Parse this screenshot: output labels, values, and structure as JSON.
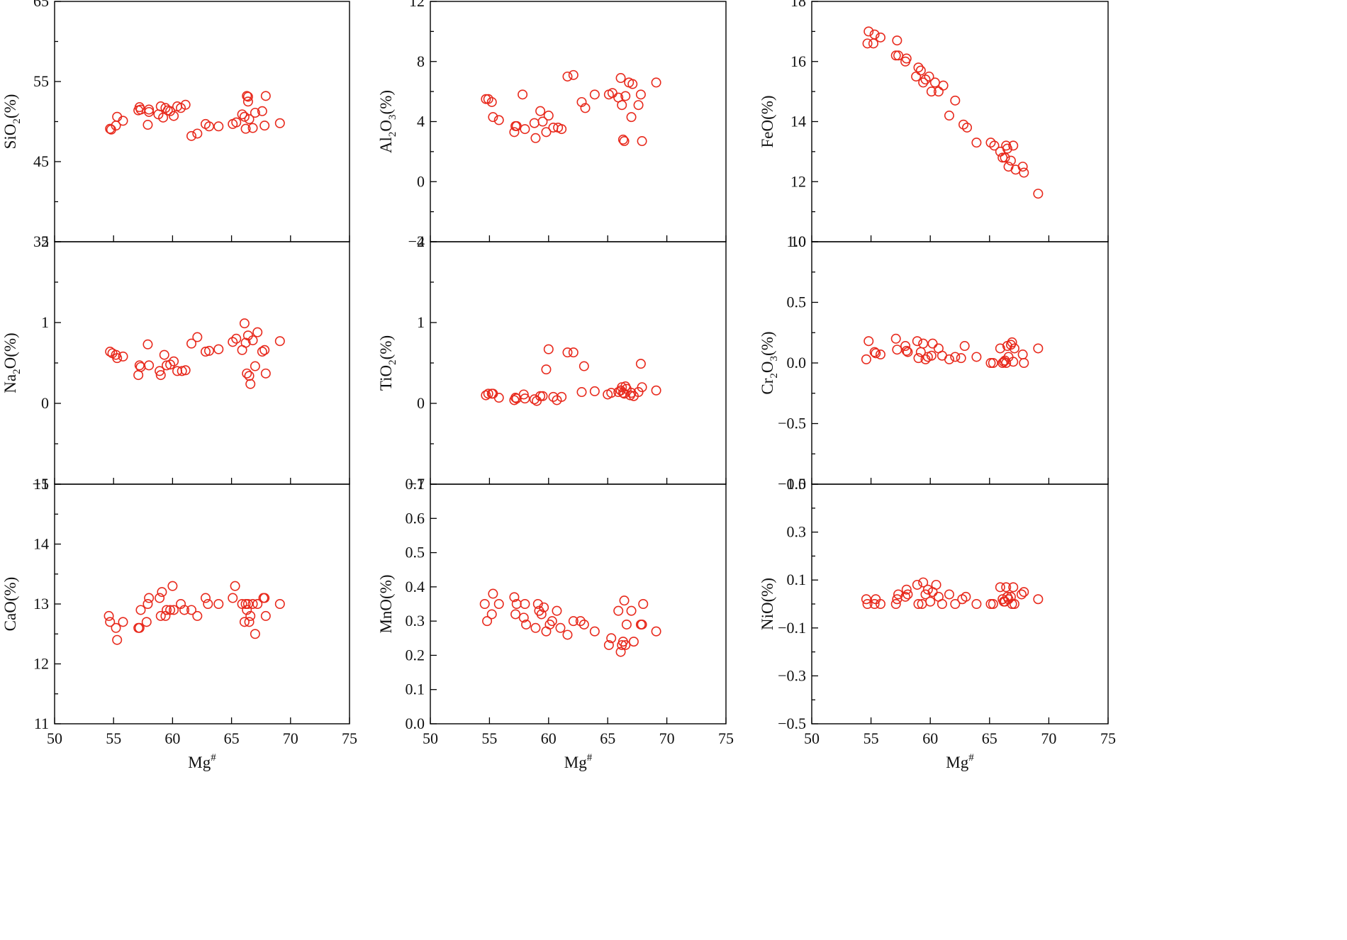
{
  "chart_data": [
    {
      "type": "scatter",
      "id": "sio2",
      "ylabel": "SiO2(%)",
      "ylabel_main": "SiO",
      "ylabel_sub": "2",
      "ylabel_tail": "(%)",
      "xlabel": "",
      "xlim": [
        50,
        75
      ],
      "ylim": [
        35,
        65
      ],
      "yticks": [
        35,
        45,
        55,
        65
      ],
      "ytick_labels": [
        "35",
        "45",
        "55",
        "65"
      ],
      "minor_yticks": [
        40,
        50,
        60
      ],
      "xticks": [
        50,
        55,
        60,
        65,
        70,
        75
      ],
      "xtick_labels": [],
      "x": [
        54.7,
        54.8,
        55.2,
        55.3,
        55.8,
        57.1,
        57.2,
        57.3,
        57.9,
        58.0,
        58.0,
        58.8,
        59.0,
        59.2,
        59.4,
        59.6,
        59.8,
        60.1,
        60.4,
        60.7,
        61.1,
        61.6,
        62.1,
        62.8,
        63.1,
        63.9,
        65.1,
        65.4,
        65.9,
        66.1,
        66.2,
        66.3,
        66.4,
        66.4,
        66.5,
        66.8,
        67.0,
        67.6,
        67.8,
        67.9,
        69.1
      ],
      "y": [
        49.1,
        49.0,
        49.5,
        50.6,
        50.1,
        51.4,
        51.8,
        51.5,
        49.6,
        51.2,
        51.5,
        50.9,
        51.9,
        50.5,
        51.7,
        51.4,
        51.3,
        50.7,
        51.9,
        51.7,
        52.1,
        48.2,
        48.5,
        49.7,
        49.4,
        49.4,
        49.7,
        49.9,
        50.9,
        50.6,
        49.1,
        53.2,
        53.1,
        52.5,
        50.3,
        49.2,
        51.1,
        51.3,
        49.5,
        53.2,
        49.8
      ],
      "color": "#e8291c",
      "marker": "open-circle",
      "grid": false,
      "legend": false
    },
    {
      "type": "scatter",
      "id": "al2o3",
      "ylabel": "Al2O3(%)",
      "ylabel_main": "Al",
      "ylabel_sub": "2",
      "ylabel_mid": "O",
      "ylabel_sub2": "3",
      "ylabel_tail": "(%)",
      "xlabel": "",
      "xlim": [
        50,
        75
      ],
      "ylim": [
        -4,
        12
      ],
      "yticks": [
        -4,
        0,
        4,
        8,
        12
      ],
      "ytick_labels": [
        "−4",
        "0",
        "4",
        "8",
        "12"
      ],
      "minor_yticks": [
        -2,
        2,
        6,
        10
      ],
      "xticks": [
        50,
        55,
        60,
        65,
        70,
        75
      ],
      "xtick_labels": [],
      "x": [
        54.7,
        54.9,
        55.2,
        55.3,
        55.8,
        57.1,
        57.2,
        57.3,
        57.8,
        58.0,
        58.8,
        58.9,
        59.3,
        59.5,
        59.8,
        60.0,
        60.4,
        60.8,
        61.1,
        61.6,
        62.1,
        62.8,
        63.1,
        63.9,
        65.1,
        65.4,
        65.9,
        66.1,
        66.2,
        66.3,
        66.4,
        66.5,
        66.8,
        67.0,
        67.1,
        67.6,
        67.8,
        67.9,
        69.1
      ],
      "y": [
        5.5,
        5.5,
        5.3,
        4.3,
        4.1,
        3.3,
        3.7,
        3.7,
        5.8,
        3.5,
        3.9,
        2.9,
        4.7,
        4.0,
        3.3,
        4.4,
        3.6,
        3.6,
        3.5,
        7.0,
        7.1,
        5.3,
        4.9,
        5.8,
        5.8,
        5.9,
        5.6,
        6.9,
        5.1,
        2.8,
        2.7,
        5.7,
        6.6,
        4.3,
        6.5,
        5.1,
        5.8,
        2.7,
        6.6
      ],
      "color": "#e8291c",
      "marker": "open-circle",
      "grid": false,
      "legend": false
    },
    {
      "type": "scatter",
      "id": "feo",
      "ylabel": "FeO(%)",
      "ylabel_main": "FeO(%)",
      "xlabel": "",
      "xlim": [
        50,
        75
      ],
      "ylim": [
        10,
        18
      ],
      "yticks": [
        10,
        12,
        14,
        16,
        18
      ],
      "ytick_labels": [
        "10",
        "12",
        "14",
        "16",
        "18"
      ],
      "minor_yticks": [
        11,
        13,
        15,
        17
      ],
      "xticks": [
        50,
        55,
        60,
        65,
        70,
        75
      ],
      "xtick_labels": [],
      "x": [
        54.7,
        54.8,
        55.2,
        55.3,
        55.8,
        57.1,
        57.2,
        57.3,
        57.9,
        58.0,
        58.8,
        59.0,
        59.2,
        59.4,
        59.6,
        59.9,
        60.1,
        60.4,
        60.7,
        61.1,
        61.6,
        62.1,
        62.8,
        63.1,
        63.9,
        65.1,
        65.4,
        65.9,
        66.1,
        66.3,
        66.4,
        66.5,
        66.6,
        66.8,
        67.0,
        67.2,
        67.8,
        67.9,
        69.1
      ],
      "y": [
        16.6,
        17.0,
        16.6,
        16.9,
        16.8,
        16.2,
        16.7,
        16.2,
        16.0,
        16.1,
        15.5,
        15.8,
        15.7,
        15.3,
        15.4,
        15.5,
        15.0,
        15.3,
        15.0,
        15.2,
        14.2,
        14.7,
        13.9,
        13.8,
        13.3,
        13.3,
        13.2,
        13.0,
        12.8,
        12.8,
        13.2,
        13.1,
        12.5,
        12.7,
        13.2,
        12.4,
        12.5,
        12.3,
        11.6
      ],
      "color": "#e8291c",
      "marker": "open-circle",
      "grid": false,
      "legend": false
    },
    {
      "type": "scatter",
      "id": "na2o",
      "ylabel": "Na2O(%)",
      "ylabel_main": "Na",
      "ylabel_sub": "2",
      "ylabel_tail": "O(%)",
      "xlabel": "",
      "xlim": [
        50,
        75
      ],
      "ylim": [
        -1,
        2
      ],
      "yticks": [
        -1,
        0,
        1,
        2
      ],
      "ytick_labels": [
        "−1",
        "0",
        "1",
        "2"
      ],
      "minor_yticks": [
        -0.5,
        0.5,
        1.5
      ],
      "xticks": [
        50,
        55,
        60,
        65,
        70,
        75
      ],
      "xtick_labels": [],
      "x": [
        54.7,
        54.9,
        55.2,
        55.3,
        55.8,
        57.1,
        57.2,
        57.3,
        57.9,
        58.0,
        58.9,
        59.0,
        59.3,
        59.5,
        59.8,
        60.1,
        60.4,
        60.8,
        61.1,
        61.6,
        62.1,
        62.8,
        63.1,
        63.9,
        65.1,
        65.4,
        65.9,
        66.1,
        66.2,
        66.3,
        66.4,
        66.5,
        66.6,
        66.8,
        67.0,
        67.2,
        67.6,
        67.8,
        67.9,
        69.1
      ],
      "y": [
        0.64,
        0.62,
        0.6,
        0.56,
        0.58,
        0.35,
        0.47,
        0.45,
        0.73,
        0.47,
        0.4,
        0.35,
        0.6,
        0.47,
        0.48,
        0.52,
        0.4,
        0.4,
        0.41,
        0.74,
        0.82,
        0.64,
        0.65,
        0.67,
        0.76,
        0.8,
        0.66,
        0.99,
        0.75,
        0.37,
        0.84,
        0.34,
        0.24,
        0.78,
        0.46,
        0.88,
        0.64,
        0.66,
        0.37,
        0.77
      ],
      "color": "#e8291c",
      "marker": "open-circle",
      "grid": false,
      "legend": false
    },
    {
      "type": "scatter",
      "id": "tio2",
      "ylabel": "TiO2(%)",
      "ylabel_main": "TiO",
      "ylabel_sub": "2",
      "ylabel_tail": "(%)",
      "xlabel": "",
      "xlim": [
        50,
        75
      ],
      "ylim": [
        -1,
        2
      ],
      "yticks": [
        -1,
        0,
        1,
        2
      ],
      "ytick_labels": [
        "−1",
        "0",
        "1",
        "2"
      ],
      "minor_yticks": [
        -0.5,
        0.5,
        1.5
      ],
      "xticks": [
        50,
        55,
        60,
        65,
        70,
        75
      ],
      "xtick_labels": [],
      "x": [
        54.7,
        54.9,
        55.2,
        55.3,
        55.8,
        57.1,
        57.2,
        57.3,
        57.9,
        58.0,
        58.8,
        59.0,
        59.3,
        59.5,
        59.8,
        60.0,
        60.4,
        60.7,
        61.1,
        61.6,
        62.1,
        62.8,
        63.0,
        63.9,
        65.0,
        65.3,
        65.9,
        66.1,
        66.2,
        66.3,
        66.4,
        66.5,
        66.6,
        66.9,
        67.0,
        67.2,
        67.6,
        67.8,
        67.9,
        69.1
      ],
      "y": [
        0.1,
        0.12,
        0.12,
        0.12,
        0.07,
        0.04,
        0.07,
        0.06,
        0.11,
        0.06,
        0.05,
        0.03,
        0.09,
        0.09,
        0.42,
        0.67,
        0.08,
        0.04,
        0.08,
        0.63,
        0.63,
        0.14,
        0.46,
        0.15,
        0.11,
        0.13,
        0.14,
        0.16,
        0.2,
        0.13,
        0.12,
        0.21,
        0.18,
        0.1,
        0.13,
        0.09,
        0.14,
        0.49,
        0.2,
        0.16
      ],
      "color": "#e8291c",
      "marker": "open-circle",
      "grid": false,
      "legend": false
    },
    {
      "type": "scatter",
      "id": "cr2o3",
      "ylabel": "Cr2O3(%)",
      "ylabel_main": "Cr",
      "ylabel_sub": "2",
      "ylabel_mid": "O",
      "ylabel_sub2": "3",
      "ylabel_tail": "(%)",
      "xlabel": "",
      "xlim": [
        50,
        75
      ],
      "ylim": [
        -1,
        1
      ],
      "yticks": [
        -1,
        -0.5,
        0,
        0.5,
        1
      ],
      "ytick_labels": [
        "−1.0",
        "−0.5",
        "0.0",
        "0.5",
        "1.0"
      ],
      "minor_yticks": [
        -0.75,
        -0.25,
        0.25,
        0.75
      ],
      "xticks": [
        50,
        55,
        60,
        65,
        70,
        75
      ],
      "xtick_labels": [],
      "x": [
        54.6,
        54.8,
        55.3,
        55.4,
        55.8,
        57.1,
        57.2,
        57.9,
        58.0,
        58.1,
        58.9,
        59.0,
        59.2,
        59.4,
        59.6,
        59.8,
        60.1,
        60.2,
        60.7,
        61.0,
        61.6,
        62.1,
        62.6,
        62.9,
        63.9,
        65.1,
        65.3,
        65.9,
        66.1,
        66.2,
        66.3,
        66.4,
        66.5,
        66.6,
        66.8,
        66.9,
        67.0,
        67.1,
        67.8,
        67.9,
        69.1
      ],
      "y": [
        0.03,
        0.18,
        0.09,
        0.08,
        0.07,
        0.2,
        0.11,
        0.14,
        0.1,
        0.09,
        0.18,
        0.04,
        0.09,
        0.16,
        0.03,
        0.05,
        0.06,
        0.16,
        0.12,
        0.06,
        0.03,
        0.05,
        0.04,
        0.14,
        0.05,
        0.0,
        0.0,
        0.12,
        0.0,
        0.01,
        0.02,
        0.0,
        0.14,
        0.05,
        0.15,
        0.17,
        0.01,
        0.12,
        0.07,
        0.0,
        0.12
      ],
      "color": "#e8291c",
      "marker": "open-circle",
      "grid": false,
      "legend": false
    },
    {
      "type": "scatter",
      "id": "cao",
      "ylabel": "CaO(%)",
      "ylabel_main": "CaO(%)",
      "xlabel": "Mg#",
      "xlim": [
        50,
        75
      ],
      "ylim": [
        11,
        15
      ],
      "yticks": [
        11,
        12,
        13,
        14,
        15
      ],
      "ytick_labels": [
        "11",
        "12",
        "13",
        "14",
        "15"
      ],
      "minor_yticks": [
        11.5,
        12.5,
        13.5,
        14.5
      ],
      "xticks": [
        50,
        55,
        60,
        65,
        70,
        75
      ],
      "xtick_labels": [
        "50",
        "55",
        "60",
        "65",
        "70",
        "75"
      ],
      "x": [
        54.6,
        54.7,
        55.2,
        55.3,
        55.8,
        57.1,
        57.2,
        57.3,
        57.8,
        57.9,
        58.0,
        58.9,
        59.0,
        59.1,
        59.4,
        59.5,
        59.8,
        60.0,
        60.1,
        60.7,
        61.0,
        61.6,
        62.1,
        62.8,
        63.0,
        63.9,
        65.1,
        65.3,
        65.9,
        66.1,
        66.2,
        66.3,
        66.4,
        66.5,
        66.6,
        66.8,
        67.0,
        67.2,
        67.7,
        67.8,
        67.9,
        69.1
      ],
      "y": [
        12.8,
        12.7,
        12.6,
        12.4,
        12.7,
        12.6,
        12.6,
        12.9,
        12.7,
        13.0,
        13.1,
        13.1,
        12.8,
        13.2,
        12.8,
        12.9,
        12.9,
        13.3,
        12.9,
        13.0,
        12.9,
        12.9,
        12.8,
        13.1,
        13.0,
        13.0,
        13.1,
        13.3,
        13.0,
        12.7,
        13.0,
        12.9,
        13.0,
        12.7,
        12.8,
        13.0,
        12.5,
        13.0,
        13.1,
        13.1,
        12.8,
        13.0
      ],
      "color": "#e8291c",
      "marker": "open-circle",
      "grid": false,
      "legend": false
    },
    {
      "type": "scatter",
      "id": "mno",
      "ylabel": "MnO(%)",
      "ylabel_main": "MnO(%)",
      "xlabel": "Mg#",
      "xlim": [
        50,
        75
      ],
      "ylim": [
        0,
        0.7
      ],
      "yticks": [
        0,
        0.1,
        0.2,
        0.3,
        0.4,
        0.5,
        0.6,
        0.7
      ],
      "ytick_labels": [
        "0.0",
        "0.1",
        "0.2",
        "0.3",
        "0.4",
        "0.5",
        "0.6",
        "0.7"
      ],
      "minor_yticks": [],
      "xticks": [
        50,
        55,
        60,
        65,
        70,
        75
      ],
      "xtick_labels": [
        "50",
        "55",
        "60",
        "65",
        "70",
        "75"
      ],
      "x": [
        54.6,
        54.8,
        55.2,
        55.3,
        55.8,
        57.1,
        57.2,
        57.3,
        57.9,
        58.0,
        58.1,
        58.9,
        59.1,
        59.2,
        59.4,
        59.6,
        59.8,
        60.1,
        60.3,
        60.7,
        61.0,
        61.6,
        62.1,
        62.7,
        63.0,
        63.9,
        65.1,
        65.3,
        65.9,
        66.1,
        66.2,
        66.3,
        66.4,
        66.5,
        66.6,
        67.0,
        67.2,
        67.8,
        67.9,
        68.0,
        69.1
      ],
      "y": [
        0.35,
        0.3,
        0.32,
        0.38,
        0.35,
        0.37,
        0.32,
        0.35,
        0.31,
        0.35,
        0.29,
        0.28,
        0.35,
        0.33,
        0.32,
        0.34,
        0.27,
        0.29,
        0.3,
        0.33,
        0.28,
        0.26,
        0.3,
        0.3,
        0.29,
        0.27,
        0.23,
        0.25,
        0.33,
        0.21,
        0.23,
        0.24,
        0.36,
        0.23,
        0.29,
        0.33,
        0.24,
        0.29,
        0.29,
        0.35,
        0.27
      ],
      "color": "#e8291c",
      "marker": "open-circle",
      "grid": false,
      "legend": false
    },
    {
      "type": "scatter",
      "id": "nio",
      "ylabel": "NiO(%)",
      "ylabel_main": "NiO(%)",
      "xlabel": "Mg#",
      "xlim": [
        50,
        75
      ],
      "ylim": [
        -0.5,
        0.5
      ],
      "yticks": [
        -0.5,
        -0.3,
        -0.1,
        0.1,
        0.3,
        0.5
      ],
      "ytick_labels": [
        "−0.5",
        "−0.3",
        "−0.1",
        "0.1",
        "0.3",
        "0.5"
      ],
      "minor_yticks": [
        -0.4,
        -0.2,
        0.0,
        0.2,
        0.4
      ],
      "xticks": [
        50,
        55,
        60,
        65,
        70,
        75
      ],
      "xtick_labels": [
        "50",
        "55",
        "60",
        "65",
        "70",
        "75"
      ],
      "x": [
        54.6,
        54.7,
        55.3,
        55.4,
        55.8,
        57.1,
        57.2,
        57.3,
        57.9,
        58.0,
        58.1,
        58.9,
        59.0,
        59.3,
        59.4,
        59.6,
        59.8,
        60.0,
        60.2,
        60.5,
        60.7,
        61.0,
        61.6,
        62.1,
        62.7,
        63.0,
        63.9,
        65.1,
        65.3,
        65.9,
        66.1,
        66.2,
        66.3,
        66.4,
        66.5,
        66.6,
        66.8,
        66.9,
        67.0,
        67.1,
        67.7,
        67.9,
        69.1
      ],
      "y": [
        0.02,
        0.0,
        0.0,
        0.02,
        0.0,
        0.0,
        0.02,
        0.04,
        0.03,
        0.06,
        0.04,
        0.08,
        0.0,
        0.0,
        0.09,
        0.04,
        0.06,
        0.01,
        0.05,
        0.08,
        0.03,
        0.0,
        0.04,
        0.0,
        0.02,
        0.03,
        0.0,
        0.0,
        0.0,
        0.07,
        0.02,
        0.01,
        0.01,
        0.07,
        0.03,
        0.02,
        0.03,
        0.0,
        0.07,
        0.0,
        0.04,
        0.05,
        0.02
      ],
      "color": "#e8291c",
      "marker": "open-circle",
      "grid": false,
      "legend": false
    }
  ]
}
